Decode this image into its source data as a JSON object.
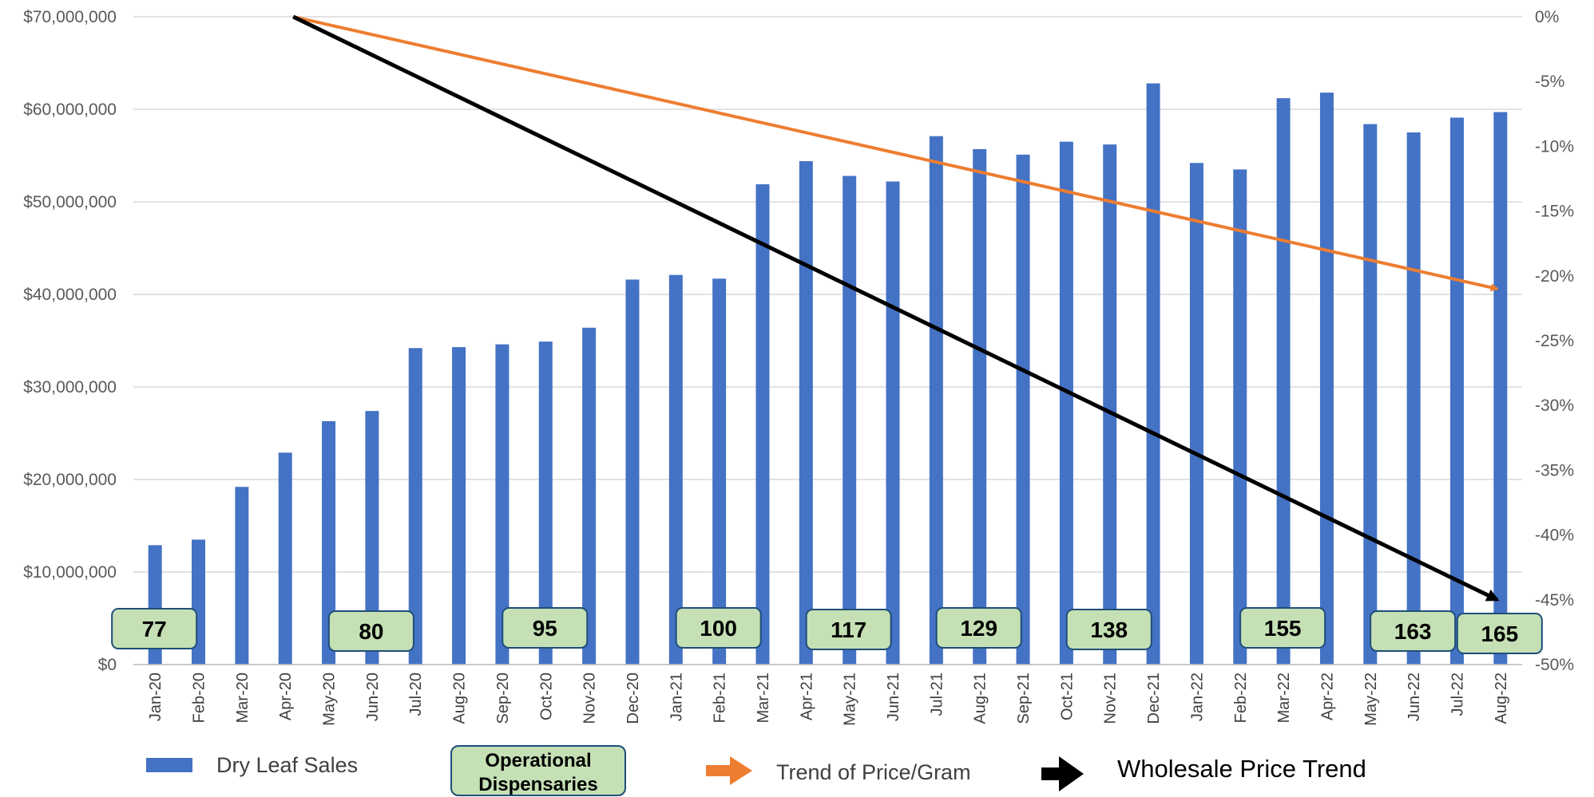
{
  "chart_data": {
    "type": "bar",
    "categories": [
      "Jan-20",
      "Feb-20",
      "Mar-20",
      "Apr-20",
      "May-20",
      "Jun-20",
      "Jul-20",
      "Aug-20",
      "Sep-20",
      "Oct-20",
      "Nov-20",
      "Dec-20",
      "Jan-21",
      "Feb-21",
      "Mar-21",
      "Apr-21",
      "May-21",
      "Jun-21",
      "Jul-21",
      "Aug-21",
      "Sep-21",
      "Oct-21",
      "Nov-21",
      "Dec-21",
      "Jan-22",
      "Feb-22",
      "Mar-22",
      "Apr-22",
      "May-22",
      "Jun-22",
      "Jul-22",
      "Aug-22"
    ],
    "series": [
      {
        "name": "Dry Leaf Sales",
        "color": "#4472C4",
        "values": [
          12900000,
          13500000,
          19200000,
          22900000,
          26300000,
          27400000,
          34200000,
          34300000,
          34600000,
          34900000,
          36400000,
          41600000,
          42100000,
          41700000,
          51900000,
          54400000,
          52800000,
          52200000,
          57100000,
          55700000,
          55100000,
          56500000,
          56200000,
          62800000,
          54200000,
          53500000,
          61200000,
          61800000,
          58400000,
          57500000,
          59100000,
          59700000
        ]
      }
    ],
    "y_left": {
      "ticks": [
        "$0",
        "$10,000,000",
        "$20,000,000",
        "$30,000,000",
        "$40,000,000",
        "$50,000,000",
        "$60,000,000",
        "$70,000,000"
      ],
      "ylim": [
        0,
        70000000
      ]
    },
    "y_right": {
      "ticks": [
        "0%",
        "-5%",
        "-10%",
        "-15%",
        "-20%",
        "-25%",
        "-30%",
        "-35%",
        "-40%",
        "-45%",
        "-50%"
      ],
      "ylim": [
        -0.5,
        0
      ]
    },
    "trends": [
      {
        "name": "Trend of Price/Gram",
        "color": "#ED7D31",
        "from": {
          "x": "Apr-20",
          "y": 0.0
        },
        "to": {
          "x": "Aug-22",
          "y": -0.21
        }
      },
      {
        "name": "Wholesale Price Trend",
        "color": "#000000",
        "from": {
          "x": "Apr-20",
          "y": 0.0
        },
        "to": {
          "x": "Aug-22",
          "y": -0.45
        }
      }
    ],
    "dispensary_labels": [
      {
        "at": "Jan-20",
        "value": "77"
      },
      {
        "at": "Jun-20",
        "value": "80"
      },
      {
        "at": "Oct-20",
        "value": "95"
      },
      {
        "at": "Feb-21",
        "value": "100"
      },
      {
        "at": "May-21",
        "value": "117"
      },
      {
        "at": "Aug-21",
        "value": "129"
      },
      {
        "at": "Nov-21",
        "value": "138"
      },
      {
        "at": "Mar-22",
        "value": "155"
      },
      {
        "at": "Jun-22",
        "value": "163"
      },
      {
        "at": "Aug-22",
        "value": "165"
      }
    ],
    "label_box_fill": "#C5E0B4",
    "label_box_stroke": "#1F4E79",
    "legend": {
      "placement": "bottom",
      "items": [
        {
          "kind": "bar",
          "label": "Dry Leaf Sales",
          "color": "#4472C4"
        },
        {
          "kind": "box",
          "label_line1": "Operational",
          "label_line2": "Dispensaries"
        },
        {
          "kind": "arrow",
          "label": "Trend of Price/Gram",
          "color": "#ED7D31"
        },
        {
          "kind": "arrow",
          "label": "Wholesale Price Trend",
          "color": "#000000"
        }
      ]
    },
    "grid": true
  }
}
